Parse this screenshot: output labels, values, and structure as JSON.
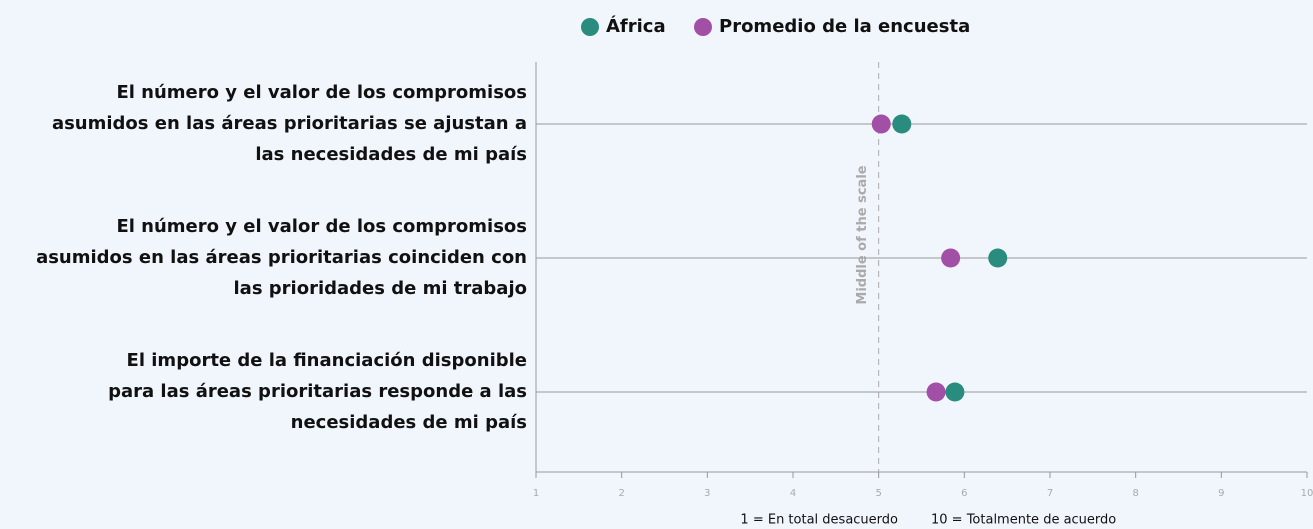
{
  "chart_data": {
    "type": "dot",
    "categories": [
      [
        "El número y el valor de los compromisos",
        "asumidos en las áreas prioritarias se ajustan a",
        "las necesidades de mi país"
      ],
      [
        "El número y el valor de los compromisos",
        "asumidos en las áreas prioritarias coinciden con",
        "las prioridades de mi trabajo"
      ],
      [
        "El importe de la financiación disponible",
        "para las áreas prioritarias responde a las",
        "necesidades de mi país"
      ]
    ],
    "series": [
      {
        "name": "África",
        "color": "#2a8c7e",
        "values": [
          5.27,
          6.39,
          5.89
        ]
      },
      {
        "name": "Promedio de la encuesta",
        "color": "#a24fa6",
        "values": [
          5.03,
          5.84,
          5.67
        ]
      }
    ],
    "xlim": [
      1,
      10
    ],
    "xticks": [
      1,
      2,
      3,
      4,
      5,
      6,
      7,
      8,
      9,
      10
    ],
    "reference_line": {
      "value": 5,
      "label": "Middle of the scale"
    },
    "scale_notes": [
      "1 = En total desacuerdo",
      "10 = Totalmente de acuerdo"
    ]
  }
}
